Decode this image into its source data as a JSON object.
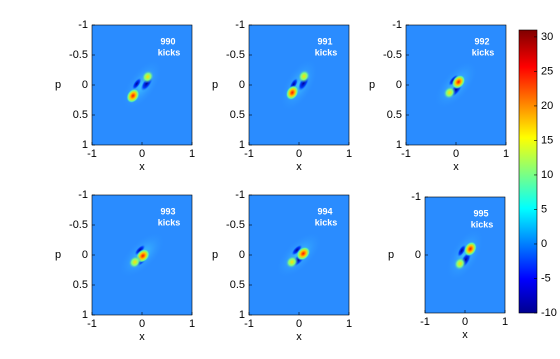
{
  "chart_data": [
    {
      "type": "heatmap",
      "annotation": [
        "990",
        "kicks"
      ],
      "xlabel": "x",
      "ylabel": "p",
      "xlim": [
        -1,
        1
      ],
      "ylim": [
        1,
        -1
      ],
      "xticks": [
        -1,
        0,
        1
      ],
      "yticks": [
        -1,
        -0.5,
        0,
        0.5,
        1
      ]
    },
    {
      "type": "heatmap",
      "annotation": [
        "991",
        "kicks"
      ],
      "xlabel": "x",
      "ylabel": "p",
      "xlim": [
        -1,
        1
      ],
      "ylim": [
        1,
        -1
      ],
      "xticks": [
        -1,
        0,
        1
      ],
      "yticks": [
        -1,
        -0.5,
        0,
        0.5,
        1
      ]
    },
    {
      "type": "heatmap",
      "annotation": [
        "992",
        "kicks"
      ],
      "xlabel": "x",
      "ylabel": "p",
      "xlim": [
        -1,
        1
      ],
      "ylim": [
        1,
        -1
      ],
      "xticks": [
        -1,
        0,
        1
      ],
      "yticks": [
        -1,
        -0.5,
        0,
        0.5,
        1
      ]
    },
    {
      "type": "heatmap",
      "annotation": [
        "993",
        "kicks"
      ],
      "xlabel": "x",
      "ylabel": "p",
      "xlim": [
        -1,
        1
      ],
      "ylim": [
        1,
        -1
      ],
      "xticks": [
        -1,
        0,
        1
      ],
      "yticks": [
        -1,
        -0.5,
        0,
        0.5,
        1
      ]
    },
    {
      "type": "heatmap",
      "annotation": [
        "994",
        "kicks"
      ],
      "xlabel": "x",
      "ylabel": "p",
      "xlim": [
        -1,
        1
      ],
      "ylim": [
        1,
        -1
      ],
      "xticks": [
        -1,
        0,
        1
      ],
      "yticks": [
        -1,
        -0.5,
        0,
        0.5,
        1
      ]
    },
    {
      "type": "heatmap",
      "annotation": [
        "995",
        "kicks"
      ],
      "xlabel": "x",
      "ylabel": "p",
      "xlim": [
        -1,
        1
      ],
      "ylim": [
        1,
        -1
      ],
      "xticks": [
        -1,
        0,
        1
      ],
      "yticks": [
        -1,
        0
      ]
    },
    {
      "type": "colorbar",
      "clim": [
        -10,
        31
      ],
      "ticks": [
        -10,
        -5,
        0,
        5,
        10,
        15,
        20,
        25,
        30
      ]
    }
  ]
}
